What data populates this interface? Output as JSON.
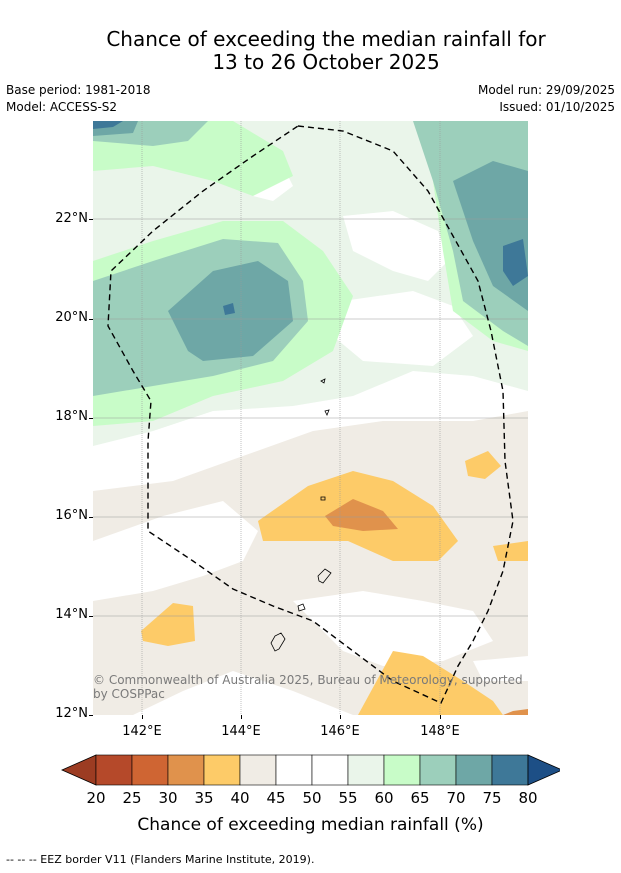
{
  "title_line1": "Chance of exceeding the median rainfall for",
  "title_line2": "13 to 26 October 2025",
  "base_period": "Base period: 1981-2018",
  "model": "Model: ACCESS-S2",
  "model_run": "Model run: 29/09/2025",
  "issued": "Issued: 01/10/2025",
  "lat_labels": [
    "22°N",
    "20°N",
    "18°N",
    "16°N",
    "14°N",
    "12°N"
  ],
  "lon_labels": [
    "142°E",
    "144°E",
    "146°E",
    "148°E"
  ],
  "copyright_line1": "© Commonwealth of Australia 2025, Bureau of Meteorology, supported",
  "copyright_line2": "by COSPPac",
  "colorbar": {
    "ticks": [
      "20",
      "25",
      "30",
      "35",
      "40",
      "45",
      "50",
      "55",
      "60",
      "65",
      "70",
      "75",
      "80"
    ],
    "colors": [
      "#9c3c22",
      "#b5492a",
      "#cf6533",
      "#e0924c",
      "#fdcb68",
      "#f0ece5",
      "#ffffff",
      "#ffffff",
      "#eaf5ea",
      "#c8fcc8",
      "#9ccfbb",
      "#6ea7a6",
      "#3e7898",
      "#1d4f86"
    ],
    "title": "Chance of exceeding median rainfall (%)"
  },
  "eez_note": "--  --  -- EEZ border V11 (Flanders Marine Institute, 2019)."
}
